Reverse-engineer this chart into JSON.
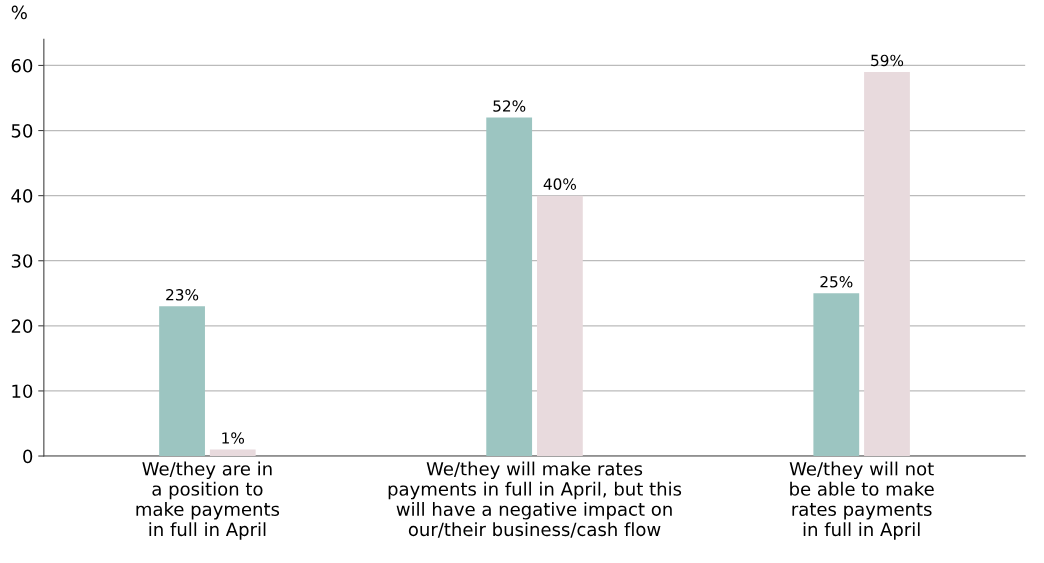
{
  "chart_data": {
    "type": "bar",
    "ylabel": "%",
    "categories": [
      "We/they are in\na position to\nmake payments\nin full in April",
      "We/they will make rates\npayments in full in April, but this\nwill have a negative impact on\nour/their business/cash flow",
      "We/they will not\nbe able to make\nrates payments\nin full in April"
    ],
    "series": [
      {
        "color": "#9cc5c1",
        "values": [
          23,
          52,
          25
        ],
        "value_labels": [
          "23%",
          "52%",
          "25%"
        ]
      },
      {
        "color": "#e8dadd",
        "values": [
          1,
          40,
          59
        ],
        "value_labels": [
          "1%",
          "40%",
          "59%"
        ]
      }
    ],
    "ylim": [
      0,
      64
    ],
    "yticks": [
      0,
      10,
      20,
      30,
      40,
      50,
      60
    ],
    "grid": "y",
    "legend": false
  }
}
